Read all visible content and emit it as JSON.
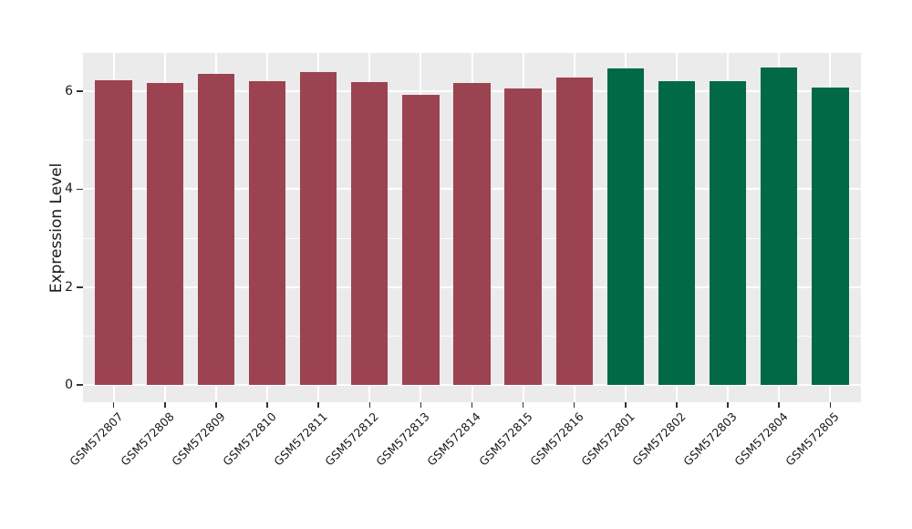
{
  "figure": {
    "background": "#ffffff"
  },
  "chart_data": {
    "type": "bar",
    "title": "",
    "xlabel": "",
    "ylabel": "Expression Level",
    "categories": [
      "GSM572807",
      "GSM572808",
      "GSM572809",
      "GSM572810",
      "GSM572811",
      "GSM572812",
      "GSM572813",
      "GSM572814",
      "GSM572815",
      "GSM572816",
      "GSM572801",
      "GSM572802",
      "GSM572803",
      "GSM572804",
      "GSM572805"
    ],
    "values": [
      6.22,
      6.17,
      6.36,
      6.21,
      6.39,
      6.19,
      5.92,
      6.17,
      6.06,
      6.28,
      6.46,
      6.2,
      6.21,
      6.48,
      6.08
    ],
    "bar_colors": [
      "#9C4351",
      "#9C4351",
      "#9C4351",
      "#9C4351",
      "#9C4351",
      "#9C4351",
      "#9C4351",
      "#9C4351",
      "#9C4351",
      "#9C4351",
      "#016946",
      "#016946",
      "#016946",
      "#016946",
      "#016946"
    ],
    "yticks": [
      0,
      2,
      4,
      6
    ],
    "minor_yticks": [
      1,
      3,
      5
    ],
    "ylim": [
      -0.35,
      6.78
    ],
    "grid": true,
    "legend_position": "none",
    "panel_bg": "#EBEBEB",
    "grid_color": "#FFFFFF",
    "tick_color": "#333333",
    "text_color": "#1a1a1a"
  }
}
